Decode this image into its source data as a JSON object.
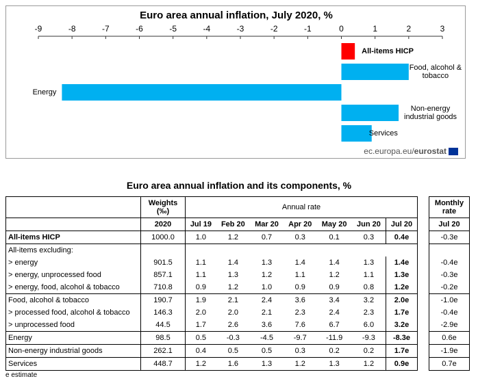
{
  "chart_data": {
    "type": "hbar",
    "title": "Euro area annual inflation, July 2020, %",
    "categories": [
      "All-items HICP",
      "Food, alcohol & tobacco",
      "Energy",
      "Non-energy industrial goods",
      "Services"
    ],
    "values": [
      0.4,
      2.0,
      -8.3,
      1.7,
      0.9
    ],
    "colors": [
      "#ff0000",
      "#00b0f0",
      "#00b0f0",
      "#00b0f0",
      "#00b0f0"
    ],
    "xlim": [
      -9,
      3
    ],
    "xticks": [
      -9,
      -8,
      -7,
      -6,
      -5,
      -4,
      -3,
      -2,
      -1,
      0,
      1,
      2,
      3
    ],
    "source": "ec.europa.eu/",
    "source_brand": "eurostat"
  },
  "table": {
    "title": "Euro area annual inflation and its components, %",
    "header": {
      "weights": "Weights (‰)",
      "annual": "Annual rate",
      "monthly": "Monthly rate",
      "weights_year": "2020",
      "periods": [
        "Jul 19",
        "Feb 20",
        "Mar 20",
        "Apr 20",
        "May 20",
        "Jun 20",
        "Jul 20"
      ],
      "monthly_period": "Jul 20"
    },
    "rows": [
      {
        "label": "All-items HICP",
        "weight": "1000.0",
        "rates": [
          "1.0",
          "1.2",
          "0.7",
          "0.3",
          "0.1",
          "0.3",
          "0.4e"
        ],
        "monthly": "-0.3e"
      },
      {
        "label": "All-items excluding:"
      },
      {
        "label": "> energy",
        "weight": "901.5",
        "rates": [
          "1.1",
          "1.4",
          "1.3",
          "1.4",
          "1.4",
          "1.3",
          "1.4e"
        ],
        "monthly": "-0.4e"
      },
      {
        "label": "> energy, unprocessed food",
        "weight": "857.1",
        "rates": [
          "1.1",
          "1.3",
          "1.2",
          "1.1",
          "1.2",
          "1.1",
          "1.3e"
        ],
        "monthly": "-0.3e"
      },
      {
        "label": "> energy, food, alcohol & tobacco",
        "weight": "710.8",
        "rates": [
          "0.9",
          "1.2",
          "1.0",
          "0.9",
          "0.9",
          "0.8",
          "1.2e"
        ],
        "monthly": "-0.2e"
      },
      {
        "label": "Food, alcohol & tobacco",
        "weight": "190.7",
        "rates": [
          "1.9",
          "2.1",
          "2.4",
          "3.6",
          "3.4",
          "3.2",
          "2.0e"
        ],
        "monthly": "-1.0e"
      },
      {
        "label": "> processed food, alcohol & tobacco",
        "weight": "146.3",
        "rates": [
          "2.0",
          "2.0",
          "2.1",
          "2.3",
          "2.4",
          "2.3",
          "1.7e"
        ],
        "monthly": "-0.4e"
      },
      {
        "label": "> unprocessed food",
        "weight": "44.5",
        "rates": [
          "1.7",
          "2.6",
          "3.6",
          "7.6",
          "6.7",
          "6.0",
          "3.2e"
        ],
        "monthly": "-2.9e"
      },
      {
        "label": "Energy",
        "weight": "98.5",
        "rates": [
          "0.5",
          "-0.3",
          "-4.5",
          "-9.7",
          "-11.9",
          "-9.3",
          "-8.3e"
        ],
        "monthly": "0.6e"
      },
      {
        "label": "Non-energy industrial goods",
        "weight": "262.1",
        "rates": [
          "0.4",
          "0.5",
          "0.5",
          "0.3",
          "0.2",
          "0.2",
          "1.7e"
        ],
        "monthly": "-1.9e"
      },
      {
        "label": "Services",
        "weight": "448.7",
        "rates": [
          "1.2",
          "1.6",
          "1.3",
          "1.2",
          "1.3",
          "1.2",
          "0.9e"
        ],
        "monthly": "0.7e"
      }
    ],
    "footnote": "e estimate"
  }
}
